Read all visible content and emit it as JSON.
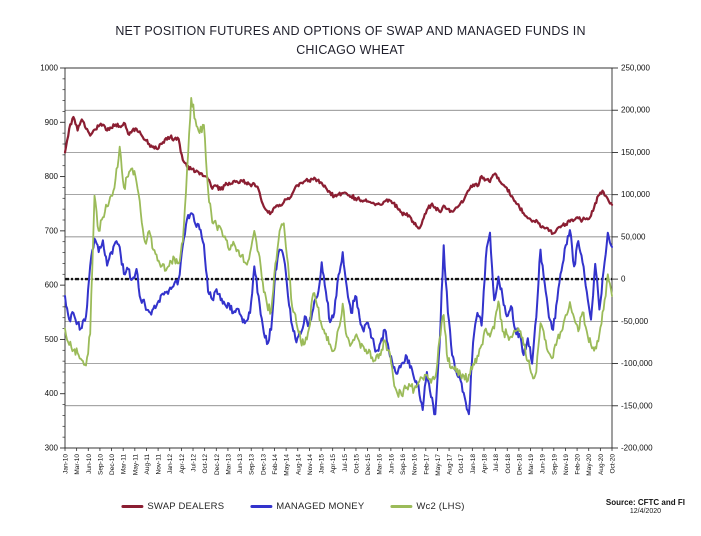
{
  "title": {
    "line1": "NET POSITION FUTURES AND OPTIONS OF SWAP AND MANAGED FUNDS IN",
    "line2": "CHICAGO WHEAT"
  },
  "source": {
    "line1": "Source: CFTC and FI",
    "line2": "12/4/2020"
  },
  "legend": {
    "items": [
      {
        "label": "SWAP DEALERS",
        "color": "#8B1E32"
      },
      {
        "label": "MANAGED MONEY",
        "color": "#3333CC"
      },
      {
        "label": "Wc2 (LHS)",
        "color": "#9BBB59"
      }
    ]
  },
  "chart_data": {
    "type": "line",
    "frequency": "monthly",
    "x_start": "Jan-2010",
    "x_end": "Nov-2020",
    "grid": "horizontal",
    "legend_position": "bottom",
    "x_tick_labels": [
      "Jan-10",
      "Mar-10",
      "Jun-10",
      "Sep-10",
      "Dec-10",
      "Mar-11",
      "May-11",
      "Aug-11",
      "Nov-11",
      "Jan-12",
      "Apr-12",
      "Jul-12",
      "Oct-12",
      "Dec-12",
      "Mar-13",
      "Jun-13",
      "Sep-13",
      "Dec-13",
      "Feb-14",
      "May-14",
      "Aug-14",
      "Nov-14",
      "Jan-15",
      "Apr-15",
      "Jul-15",
      "Oct-15",
      "Dec-15",
      "Mar-16",
      "Jun-16",
      "Sep-16",
      "Nov-16",
      "Feb-17",
      "May-17",
      "Aug-17",
      "Oct-17",
      "Jan-18",
      "Apr-18",
      "Jul-18",
      "Oct-18",
      "Dec-18",
      "Mar-19",
      "Jun-19",
      "Sep-19",
      "Nov-19",
      "Feb-20",
      "May-20",
      "Aug-20",
      "Oct-20"
    ],
    "left_axis": {
      "min": 300,
      "max": 1000,
      "ticks": [
        1000,
        900,
        800,
        700,
        600,
        500,
        400,
        300
      ],
      "minor_step": 20
    },
    "right_axis": {
      "min": -200000,
      "max": 250000,
      "ticks": [
        250000,
        200000,
        150000,
        100000,
        50000,
        0,
        -50000,
        -100000,
        -150000,
        -200000
      ],
      "tick_labels": [
        "250,000",
        "200,000",
        "150,000",
        "100,000",
        "50,000",
        "0",
        "-50,000",
        "-100,000",
        "-150,000",
        "-200,000"
      ]
    },
    "zero_line": 0,
    "series": [
      {
        "name": "SWAP DEALERS",
        "axis": "right",
        "color": "#8B1E32",
        "values": [
          150000,
          178000,
          192000,
          176000,
          189000,
          178000,
          170000,
          177000,
          181000,
          183000,
          176000,
          179000,
          183000,
          181000,
          185000,
          172000,
          176000,
          178000,
          172000,
          165000,
          160000,
          157000,
          154000,
          160000,
          167000,
          168000,
          166000,
          166000,
          141000,
          133000,
          130000,
          127000,
          124000,
          122000,
          118000,
          107000,
          110000,
          106000,
          111000,
          114000,
          116000,
          115000,
          117000,
          114000,
          112000,
          113000,
          106000,
          89000,
          81000,
          79000,
          85000,
          88000,
          91000,
          96000,
          101000,
          111000,
          114000,
          116000,
          117000,
          118000,
          117000,
          114000,
          108000,
          103000,
          98000,
          100000,
          102000,
          101000,
          98000,
          96000,
          94000,
          93000,
          92000,
          90000,
          89000,
          88000,
          92000,
          94000,
          90000,
          84000,
          79000,
          76000,
          74000,
          65000,
          60000,
          70000,
          82000,
          88000,
          85000,
          80000,
          87000,
          83000,
          80000,
          85000,
          90000,
          96000,
          105000,
          112000,
          110000,
          122000,
          118000,
          115000,
          124000,
          120000,
          112000,
          108000,
          98000,
          92000,
          85000,
          78000,
          72000,
          68000,
          70000,
          62000,
          60000,
          57000,
          54000,
          60000,
          63000,
          65000,
          68000,
          70000,
          72000,
          70000,
          72000,
          75000,
          90000,
          100000,
          103000,
          95000,
          88000
        ]
      },
      {
        "name": "MANAGED MONEY",
        "axis": "right",
        "color": "#3333CC",
        "values": [
          -20000,
          -48000,
          -40000,
          -52000,
          -58000,
          -44000,
          16000,
          48000,
          32000,
          46000,
          16000,
          32000,
          44000,
          38000,
          6000,
          12000,
          0,
          12000,
          -24000,
          -30000,
          -39000,
          -35000,
          -28000,
          -18000,
          -16000,
          -10000,
          -5000,
          0,
          40000,
          71000,
          78000,
          65000,
          59000,
          41000,
          -15000,
          -24000,
          -12000,
          -25000,
          -30000,
          -29000,
          -40000,
          -35000,
          -45000,
          -50000,
          -40000,
          15000,
          -20000,
          -55000,
          -77000,
          -60000,
          10000,
          35000,
          25000,
          -20000,
          -55000,
          -75000,
          -65000,
          -44000,
          -54000,
          -35000,
          -20000,
          20000,
          -15000,
          -51000,
          -40000,
          5000,
          32000,
          -10000,
          -40000,
          -20000,
          -45000,
          -62000,
          -52000,
          -70000,
          -85000,
          -75000,
          -60000,
          -85000,
          -105000,
          -112000,
          -100000,
          -90000,
          -105000,
          -118000,
          -125000,
          -155000,
          -110000,
          -140000,
          -160000,
          -80000,
          40000,
          -40000,
          -90000,
          -110000,
          -120000,
          -140000,
          -160000,
          -75000,
          -40000,
          -55000,
          25000,
          55000,
          -25000,
          3000,
          -21000,
          -44000,
          -32000,
          -60000,
          -65000,
          -90000,
          -70000,
          -100000,
          -45000,
          35000,
          -5000,
          -45000,
          -60000,
          -24000,
          10000,
          40000,
          58000,
          15000,
          45000,
          20000,
          -15000,
          -48000,
          18000,
          -36000,
          10000,
          55000,
          38000
        ]
      },
      {
        "name": "Wc2 (LHS)",
        "axis": "left",
        "color": "#9BBB59",
        "values": [
          520,
          490,
          480,
          475,
          462,
          452,
          510,
          765,
          700,
          725,
          745,
          765,
          795,
          855,
          780,
          800,
          815,
          790,
          735,
          680,
          700,
          665,
          645,
          635,
          627,
          645,
          650,
          640,
          680,
          810,
          945,
          905,
          880,
          895,
          775,
          715,
          710,
          705,
          690,
          665,
          680,
          665,
          655,
          640,
          660,
          700,
          660,
          605,
          565,
          552,
          640,
          700,
          714,
          640,
          560,
          530,
          498,
          492,
          520,
          585,
          560,
          525,
          511,
          491,
          480,
          520,
          566,
          505,
          491,
          506,
          495,
          486,
          475,
          467,
          470,
          471,
          498,
          480,
          430,
          400,
          397,
          410,
          415,
          408,
          420,
          428,
          435,
          420,
          430,
          500,
          545,
          460,
          450,
          440,
          435,
          426,
          435,
          455,
          470,
          490,
          520,
          505,
          520,
          570,
          515,
          510,
          505,
          515,
          515,
          490,
          460,
          435,
          440,
          530,
          500,
          475,
          467,
          500,
          515,
          545,
          569,
          540,
          515,
          550,
          515,
          490,
          486,
          510,
          555,
          620,
          580
        ]
      }
    ]
  }
}
